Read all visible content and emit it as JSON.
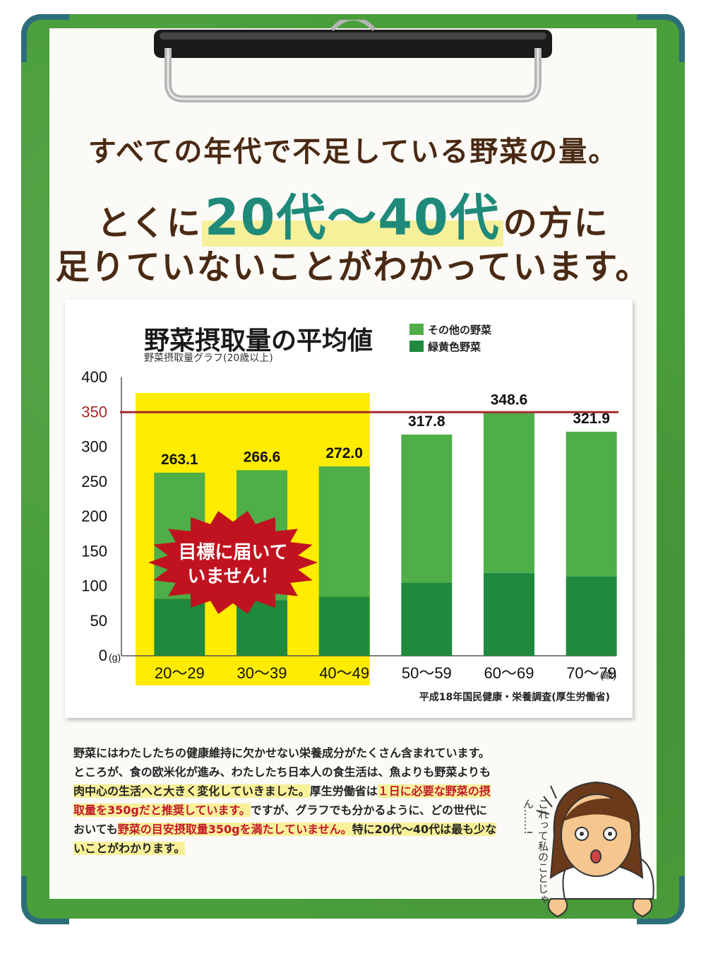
{
  "headline": {
    "line1": "すべての年代で不足している野菜の量。",
    "line2_pre": "とくに",
    "line2_highlight": "20代～40代",
    "line2_post": "の方に",
    "line3": "足りていないことがわかっています。"
  },
  "chart_data": {
    "type": "bar",
    "title": "野菜摂取量の平均値",
    "subtitle": "野菜摂取量グラフ(20歳以上)",
    "categories": [
      "20～29",
      "30～39",
      "40～49",
      "50～59",
      "60～69",
      "70～79"
    ],
    "x_unit": "(歳)",
    "y_unit": "(g)",
    "ylim": [
      0,
      400
    ],
    "yticks": [
      0,
      50,
      100,
      150,
      200,
      250,
      300,
      350,
      400
    ],
    "target_line": 350,
    "totals": [
      263.1,
      266.6,
      272.0,
      317.8,
      348.6,
      321.9
    ],
    "total_labels": [
      "263.1",
      "266.6",
      "272.0",
      "317.8",
      "348.6",
      "321.9"
    ],
    "series": [
      {
        "name": "緑黄色野菜",
        "values": [
          82,
          80,
          85,
          105,
          119,
          114
        ],
        "color": "#1f8a3e"
      },
      {
        "name": "その他の野菜",
        "values": [
          181.1,
          186.6,
          187.0,
          212.8,
          229.6,
          207.9
        ],
        "color": "#4fae48"
      }
    ],
    "highlighted_categories": [
      "20～29",
      "30～39",
      "40～49"
    ],
    "callout": {
      "line1": "目標に届いて",
      "line2": "いません！"
    },
    "grid": false,
    "legend_position": "top-right"
  },
  "chart_source": "平成18年国民健康・栄養調査(厚生労働省)",
  "body": {
    "s1": "野菜にはわたしたちの健康維持に欠かせない栄養成分がたくさん含まれています。ところが、食の欧米化が進み、わたしたち日本人の食生活は、魚よりも野菜よりも",
    "s2": "肉中心の生活へと大きく変化していきました。",
    "s3": "厚生労働省は",
    "s4": "１日に必要な野菜の",
    "s5": "摂取量を350gだと推奨しています。",
    "s6": "ですが、グラフでも分かるように、どの世代においても",
    "s7": "野菜の目安摂取量350gを満たしていません。",
    "s8": "特に20代～40代は最も少ないことがわかります。"
  },
  "speech": {
    "line1": "これって",
    "line2": "私のことじゃん……!"
  },
  "colors": {
    "board": "#4a9e3c",
    "accent_teal": "#1f8a7a",
    "headline_brown": "#4a2a14",
    "target_red": "#a52a2a",
    "highlight_yellow": "#ffec00",
    "callout_red": "#c0131f"
  }
}
